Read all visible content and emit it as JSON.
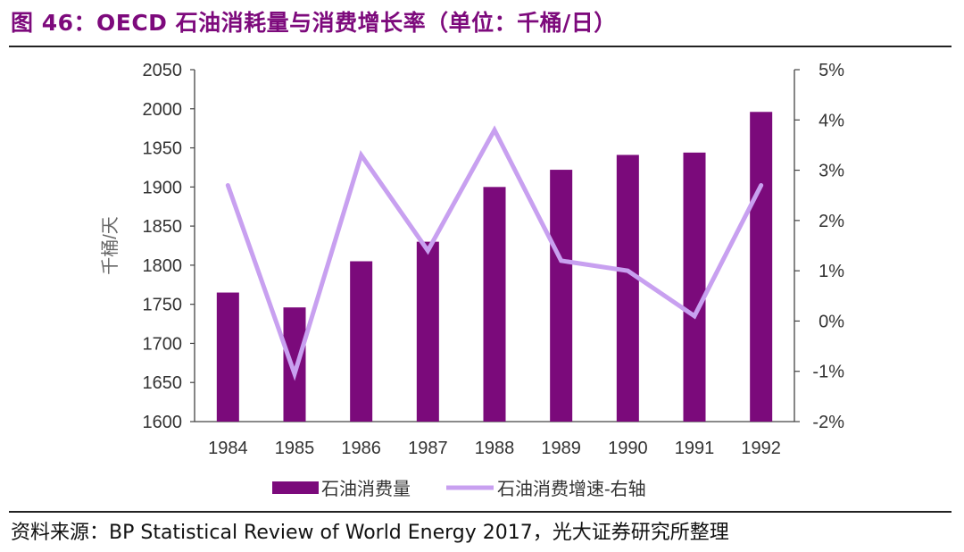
{
  "figure": {
    "title": "图 46：OECD 石油消耗量与消费增长率（单位：千桶/日）",
    "source": "资料来源：BP Statistical Review of World Energy 2017，光大证券研究所整理"
  },
  "chart_data": {
    "type": "bar",
    "categories": [
      "1984",
      "1985",
      "1986",
      "1987",
      "1988",
      "1989",
      "1990",
      "1991",
      "1992"
    ],
    "ylabel": "千桶/天",
    "ylim": [
      1600,
      2050
    ],
    "yticks": [
      "1600",
      "1650",
      "1700",
      "1750",
      "1800",
      "1850",
      "1900",
      "1950",
      "2000",
      "2050"
    ],
    "y2lim": [
      -2,
      5
    ],
    "y2ticks": [
      "-2%",
      "-1%",
      "0%",
      "1%",
      "2%",
      "3%",
      "4%",
      "5%"
    ],
    "grid": false,
    "legend_position": "bottom",
    "series": [
      {
        "name": "石油消费量",
        "type": "bar",
        "axis": "left",
        "color": "#7b0a7b",
        "values": [
          1765,
          1746,
          1805,
          1830,
          1900,
          1922,
          1941,
          1944,
          1996
        ]
      },
      {
        "name": "石油消费增速-右轴",
        "type": "line",
        "axis": "right",
        "color": "#c8a0f0",
        "values": [
          2.7,
          -1.05,
          3.3,
          1.4,
          3.8,
          1.2,
          1.0,
          0.1,
          2.7
        ]
      }
    ]
  }
}
